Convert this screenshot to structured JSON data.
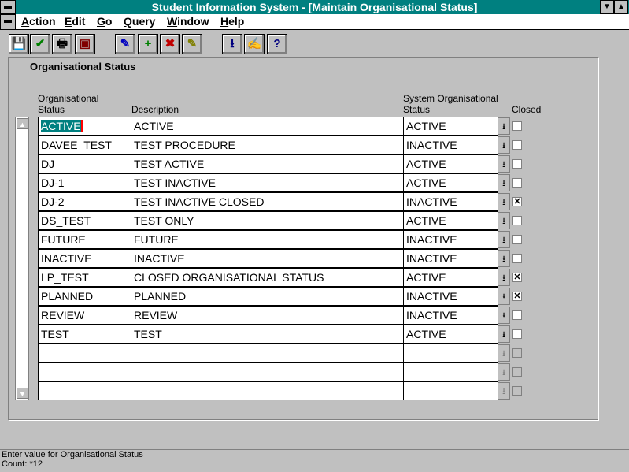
{
  "window": {
    "title": "Student Information System - [Maintain Organisational Status]"
  },
  "menu": [
    {
      "label": "Action",
      "u": "A",
      "rest": "ction"
    },
    {
      "label": "Edit",
      "u": "E",
      "rest": "dit"
    },
    {
      "label": "Go",
      "u": "G",
      "rest": "o"
    },
    {
      "label": "Query",
      "u": "Q",
      "rest": "uery"
    },
    {
      "label": "Window",
      "u": "W",
      "rest": "indow"
    },
    {
      "label": "Help",
      "u": "H",
      "rest": "elp"
    }
  ],
  "toolbar": [
    {
      "icon": "save-icon",
      "glyph": "💾",
      "color": "#0000c0"
    },
    {
      "icon": "check-icon",
      "glyph": "✔",
      "color": "#008000"
    },
    {
      "icon": "print-icon",
      "glyph": "🖶",
      "color": "#000"
    },
    {
      "icon": "print-preview-icon",
      "glyph": "▣",
      "color": "#800000"
    },
    {
      "icon": "enter-query-icon",
      "glyph": "✎",
      "color": "#0000c0"
    },
    {
      "icon": "add-record-icon",
      "glyph": "+",
      "color": "#008000"
    },
    {
      "icon": "delete-record-icon",
      "glyph": "✖",
      "color": "#c00000"
    },
    {
      "icon": "clear-record-icon",
      "glyph": "✎",
      "color": "#808000"
    },
    {
      "icon": "download-icon",
      "glyph": "⭳",
      "color": "#000080"
    },
    {
      "icon": "edit-icon",
      "glyph": "✍",
      "color": "#000"
    },
    {
      "icon": "help-icon",
      "glyph": "?",
      "color": "#000080"
    }
  ],
  "section": {
    "title": "Organisational Status"
  },
  "columns": {
    "status": [
      "Organisational",
      "Status"
    ],
    "description": "Description",
    "system": [
      "System Organisational",
      "Status"
    ],
    "closed": "Closed"
  },
  "rows": [
    {
      "status": "ACTIVE",
      "description": "ACTIVE",
      "system": "ACTIVE",
      "closed": false
    },
    {
      "status": "DAVEE_TEST",
      "description": "TEST PROCEDURE",
      "system": "INACTIVE",
      "closed": false
    },
    {
      "status": "DJ",
      "description": "TEST ACTIVE",
      "system": "ACTIVE",
      "closed": false
    },
    {
      "status": "DJ-1",
      "description": "TEST INACTIVE",
      "system": "ACTIVE",
      "closed": false
    },
    {
      "status": "DJ-2",
      "description": "TEST INACTIVE CLOSED",
      "system": "INACTIVE",
      "closed": true
    },
    {
      "status": "DS_TEST",
      "description": "TEST ONLY",
      "system": "ACTIVE",
      "closed": false
    },
    {
      "status": "FUTURE",
      "description": "FUTURE",
      "system": "INACTIVE",
      "closed": false
    },
    {
      "status": "INACTIVE",
      "description": "INACTIVE",
      "system": "INACTIVE",
      "closed": false
    },
    {
      "status": "LP_TEST",
      "description": "CLOSED ORGANISATIONAL STATUS",
      "system": "ACTIVE",
      "closed": true
    },
    {
      "status": "PLANNED",
      "description": "PLANNED",
      "system": "INACTIVE",
      "closed": true
    },
    {
      "status": "REVIEW",
      "description": "REVIEW",
      "system": "INACTIVE",
      "closed": false
    },
    {
      "status": "TEST",
      "description": "TEST",
      "system": "ACTIVE",
      "closed": false
    },
    {
      "status": "",
      "description": "",
      "system": "",
      "closed": false
    },
    {
      "status": "",
      "description": "",
      "system": "",
      "closed": false
    },
    {
      "status": "",
      "description": "",
      "system": "",
      "closed": false
    }
  ],
  "statusbar": {
    "message": "Enter value for Organisational Status",
    "count": "Count: *12"
  },
  "colors": {
    "titlebar": "#008080",
    "selection": "#008080"
  }
}
